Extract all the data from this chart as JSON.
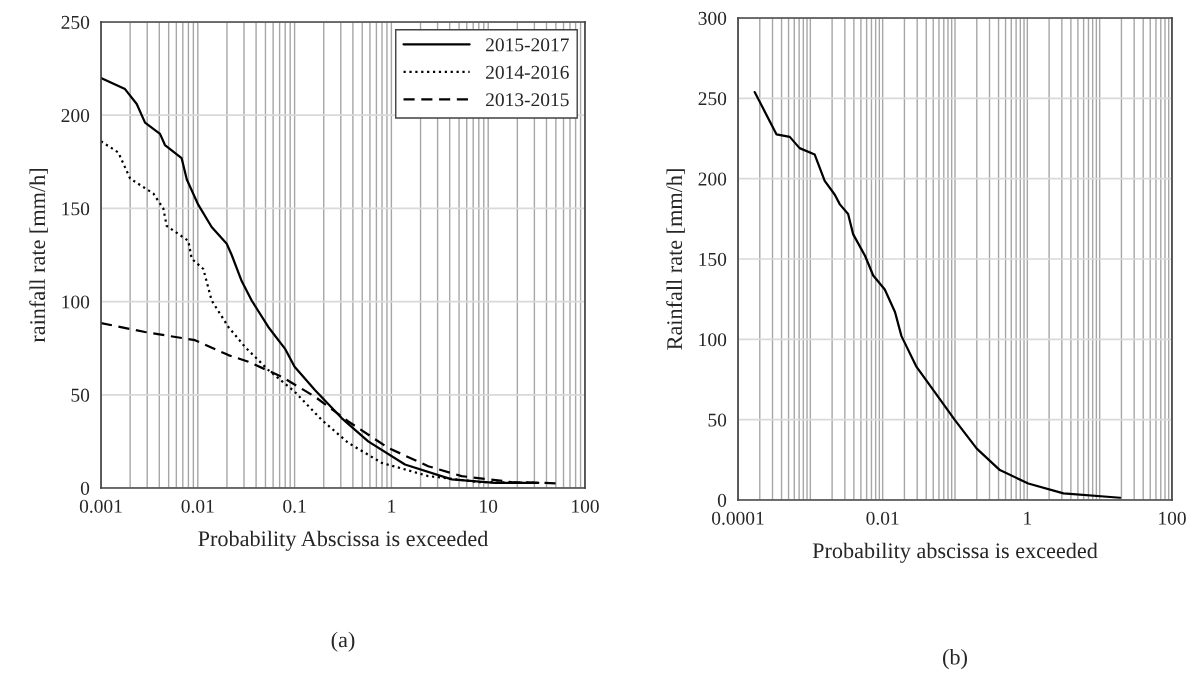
{
  "chart_data": [
    {
      "type": "line",
      "xlabel": "Probability Abscissa is exceeded",
      "ylabel": "rainfall rate [mm/h]",
      "log": "x",
      "grid": true,
      "legend": "top right",
      "xlim": [
        0.001,
        100
      ],
      "xticks": [
        {
          "value": 0.001,
          "label": "0.001"
        },
        {
          "value": 0.01,
          "label": "0.01"
        },
        {
          "value": 0.1,
          "label": "0.1"
        },
        1,
        10,
        100
      ],
      "ylim": [
        0,
        250
      ],
      "yticks": [
        0,
        50,
        100,
        150,
        200,
        250
      ],
      "annotations": [
        "(a)"
      ],
      "series": [
        {
          "name": "2015-2017",
          "color": "#000000",
          "line_style": "solid",
          "x": [
            0.001,
            0.00177,
            0.00234,
            0.00285,
            0.00407,
            0.00458,
            0.0068,
            0.0077,
            0.0101,
            0.0139,
            0.0199,
            0.0224,
            0.0284,
            0.036,
            0.0535,
            0.0794,
            0.1,
            0.162,
            0.306,
            0.576,
            1.38,
            4.2,
            11.7,
            33
          ],
          "values": [
            220,
            214,
            206,
            196,
            190,
            184,
            177,
            165.5,
            152,
            140,
            131,
            125,
            111,
            100.6,
            86.4,
            74.8,
            65,
            52.6,
            37.5,
            25,
            12.6,
            4.6,
            2.8,
            2.8
          ]
        },
        {
          "name": "2014-2016",
          "color": "#000000",
          "line_style": "dotted",
          "x": [
            0.001,
            0.00151,
            0.002,
            0.00347,
            0.0044,
            0.00477,
            0.00798,
            0.00865,
            0.0114,
            0.0139,
            0.0207,
            0.0307,
            0.0535,
            0.1,
            0.19,
            0.359,
            0.794,
            2.4,
            7.9,
            33
          ],
          "values": [
            186,
            180,
            166,
            158,
            150,
            140.6,
            132.6,
            123,
            117.5,
            100.6,
            86.4,
            75.7,
            63.3,
            51.7,
            36.6,
            24.2,
            13.5,
            6.4,
            3.2,
            2.8
          ]
        },
        {
          "name": "2013-2015",
          "color": "#000000",
          "line_style": "dashed",
          "x": [
            0.001,
            0.00285,
            0.00935,
            0.0207,
            0.0333,
            0.0735,
            0.162,
            0.359,
            0.929,
            2.4,
            5.3,
            17.4,
            52.5
          ],
          "values": [
            88.5,
            83.7,
            79.3,
            71.3,
            67.7,
            59.7,
            49,
            35.7,
            21.5,
            11.7,
            6.4,
            3.2,
            2.5
          ]
        }
      ]
    },
    {
      "type": "line",
      "xlabel": "Probability abscissa is exceeded",
      "ylabel": "Rainfall rate [mm/h]",
      "log": "x",
      "grid": true,
      "xlim": [
        0.0001,
        100
      ],
      "xticks": [
        {
          "value": 0.0001,
          "label": "0.0001"
        },
        {
          "value": 0.001,
          "label": null
        },
        {
          "value": 0.01,
          "label": "0.01"
        },
        {
          "value": 0.1,
          "label": null
        },
        1,
        {
          "value": 10,
          "label": null
        },
        100
      ],
      "ylim": [
        0,
        300
      ],
      "yticks": [
        0,
        50,
        100,
        150,
        200,
        250,
        300
      ],
      "annotations": [
        "(b)"
      ],
      "series": [
        {
          "color": "#000000",
          "line_style": "solid",
          "x": [
            0.00017,
            0.00034,
            0.00052,
            0.00071,
            0.00115,
            0.00158,
            0.00218,
            0.00256,
            0.00333,
            0.0039,
            0.0057,
            0.0074,
            0.0107,
            0.0148,
            0.0182,
            0.0294,
            0.045,
            0.0998,
            0.2,
            0.417,
            1.03,
            3.16,
            19.2
          ],
          "values": [
            253.9,
            227.6,
            226,
            219,
            215,
            198.6,
            190,
            184,
            178,
            165.5,
            152,
            139.7,
            131,
            117,
            102,
            82.8,
            71.4,
            49.7,
            32,
            18.6,
            10.3,
            4.1,
            1.4
          ]
        }
      ]
    }
  ]
}
